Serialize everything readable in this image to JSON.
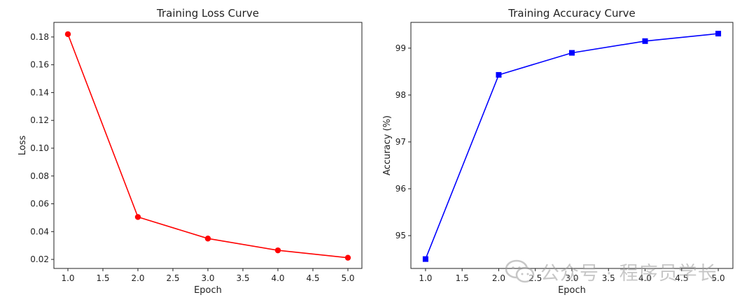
{
  "chart_data": [
    {
      "type": "line",
      "title": "Training Loss Curve",
      "xlabel": "Epoch",
      "ylabel": "Loss",
      "x": [
        1.0,
        2.0,
        3.0,
        4.0,
        5.0
      ],
      "series": [
        {
          "values": [
            0.182,
            0.0505,
            0.035,
            0.0265,
            0.0212
          ],
          "color": "#ff0000",
          "marker": "circle"
        }
      ],
      "xlim": [
        0.8,
        5.2
      ],
      "ylim": [
        0.0135,
        0.1905
      ],
      "xticks": [
        "1.0",
        "1.5",
        "2.0",
        "2.5",
        "3.0",
        "3.5",
        "4.0",
        "4.5",
        "5.0"
      ],
      "yticks": [
        "0.02",
        "0.04",
        "0.06",
        "0.08",
        "0.10",
        "0.12",
        "0.14",
        "0.16",
        "0.18"
      ],
      "grid": false
    },
    {
      "type": "line",
      "title": "Training Accuracy Curve",
      "xlabel": "Epoch",
      "ylabel": "Accuracy (%)",
      "x": [
        1.0,
        2.0,
        3.0,
        4.0,
        5.0
      ],
      "series": [
        {
          "values": [
            94.5,
            98.43,
            98.9,
            99.15,
            99.31
          ],
          "color": "#0000ff",
          "marker": "square"
        }
      ],
      "xlim": [
        0.8,
        5.2
      ],
      "ylim": [
        94.3,
        99.55
      ],
      "xticks": [
        "1.0",
        "1.5",
        "2.0",
        "2.5",
        "3.0",
        "3.5",
        "4.0",
        "4.5",
        "5.0"
      ],
      "yticks": [
        "95",
        "96",
        "97",
        "98",
        "99"
      ],
      "grid": false
    }
  ],
  "watermark": {
    "text": "公众号 · 程序员学长",
    "icon": "wechat-icon"
  }
}
